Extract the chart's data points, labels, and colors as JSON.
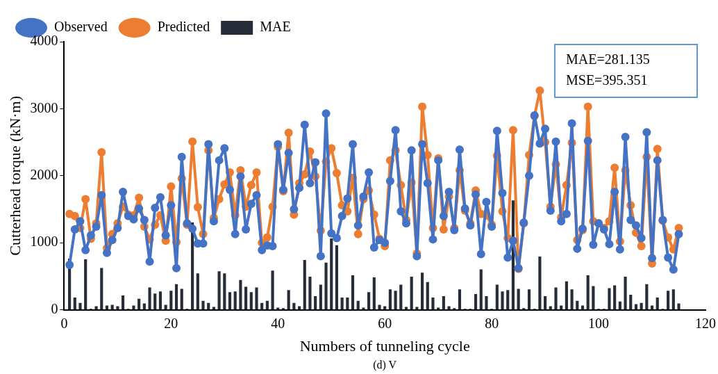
{
  "chart_data": {
    "type": "line",
    "xlabel": "Numbers of tunneling cycle",
    "ylabel": "Cutterhead torque (kN·m)",
    "annotations": [
      "MAE=281.135",
      "MSE=395.351",
      "(d) V"
    ],
    "x": [
      1,
      2,
      3,
      4,
      5,
      6,
      7,
      8,
      9,
      10,
      11,
      12,
      13,
      14,
      15,
      16,
      17,
      18,
      19,
      20,
      21,
      22,
      23,
      24,
      25,
      26,
      27,
      28,
      29,
      30,
      31,
      32,
      33,
      34,
      35,
      36,
      37,
      38,
      39,
      40,
      41,
      42,
      43,
      44,
      45,
      46,
      47,
      48,
      49,
      50,
      51,
      52,
      53,
      54,
      55,
      56,
      57,
      58,
      59,
      60,
      61,
      62,
      63,
      64,
      65,
      66,
      67,
      68,
      69,
      70,
      71,
      72,
      73,
      74,
      75,
      76,
      77,
      78,
      79,
      80,
      81,
      82,
      83,
      84,
      85,
      86,
      87,
      88,
      89,
      90,
      91,
      92,
      93,
      94,
      95,
      96,
      97,
      98,
      99,
      100,
      101,
      102,
      103,
      104,
      105,
      106,
      107,
      108,
      109,
      110,
      111,
      112,
      113,
      114,
      115
    ],
    "xlim": [
      0,
      120
    ],
    "xticks": [
      0,
      20,
      40,
      60,
      80,
      100,
      120
    ],
    "ylim": [
      0,
      4000
    ],
    "yticks": [
      0,
      1000,
      2000,
      3000,
      4000
    ],
    "grid": false,
    "legend": "top left",
    "marker": "circle",
    "line_style": "solid",
    "series": [
      {
        "name": "MAE",
        "type": "bar",
        "color": "#262c38",
        "values": [
          760,
          180,
          100,
          750,
          10,
          50,
          620,
          60,
          70,
          50,
          210,
          10,
          60,
          160,
          90,
          330,
          240,
          270,
          70,
          280,
          380,
          310,
          10,
          1300,
          540,
          130,
          100,
          40,
          570,
          540,
          260,
          270,
          440,
          340,
          260,
          330,
          100,
          130,
          580,
          30,
          20,
          290,
          100,
          50,
          740,
          490,
          200,
          370,
          700,
          1060,
          960,
          180,
          180,
          510,
          130,
          30,
          260,
          480,
          70,
          50,
          300,
          280,
          370,
          40,
          490,
          40,
          550,
          410,
          180,
          30,
          200,
          50,
          20,
          300,
          10,
          10,
          230,
          600,
          200,
          10,
          370,
          270,
          290,
          1630,
          310,
          20,
          300,
          10,
          790,
          200,
          50,
          330,
          60,
          420,
          300,
          130,
          60,
          510,
          350,
          10,
          10,
          320,
          360,
          120,
          490,
          220,
          80,
          100,
          380,
          60,
          180,
          10,
          280,
          300,
          90
        ]
      },
      {
        "name": "Observed",
        "color": "#4472c4",
        "values": [
          670,
          1200,
          1320,
          890,
          1110,
          1240,
          1710,
          850,
          1040,
          1220,
          1760,
          1400,
          1350,
          1510,
          1340,
          720,
          1520,
          1680,
          1110,
          1560,
          620,
          2280,
          1290,
          1210,
          990,
          990,
          2470,
          1320,
          2230,
          2410,
          1790,
          1130,
          1990,
          1200,
          1580,
          1710,
          890,
          960,
          950,
          2470,
          1790,
          2340,
          1500,
          1820,
          2760,
          1890,
          2200,
          800,
          2930,
          1140,
          1070,
          1400,
          1660,
          2470,
          1260,
          1690,
          2050,
          930,
          1040,
          1000,
          1920,
          2680,
          1470,
          1290,
          2380,
          800,
          2470,
          1890,
          1050,
          2230,
          1400,
          1760,
          1190,
          2390,
          1510,
          1260,
          1720,
          830,
          1610,
          1240,
          2670,
          1740,
          780,
          1030,
          620,
          1300,
          2000,
          2900,
          2480,
          2700,
          1480,
          2510,
          1320,
          1430,
          2780,
          910,
          1210,
          2520,
          970,
          1290,
          1200,
          980,
          1760,
          900,
          2580,
          1340,
          1260,
          1070,
          2650,
          770,
          2230,
          1340,
          780,
          600,
          1130
        ]
      },
      {
        "name": "Predicted",
        "color": "#ed7d31",
        "values": [
          1430,
          1400,
          1220,
          1650,
          1060,
          1290,
          2350,
          920,
          1130,
          1290,
          1540,
          1420,
          1410,
          1670,
          1240,
          1050,
          1270,
          1410,
          1030,
          1840,
          1010,
          1960,
          1270,
          2510,
          1530,
          1130,
          2380,
          1370,
          1650,
          1870,
          2050,
          1410,
          2080,
          1540,
          1860,
          2050,
          1000,
          1080,
          1540,
          2430,
          1770,
          2640,
          1420,
          1890,
          2020,
          2360,
          1990,
          1180,
          2210,
          2410,
          2040,
          1560,
          1470,
          1970,
          1130,
          1650,
          1780,
          1420,
          1060,
          950,
          2230,
          2380,
          1860,
          1340,
          1900,
          840,
          3030,
          2310,
          1220,
          2260,
          1200,
          1690,
          1220,
          2080,
          1480,
          1290,
          1780,
          1430,
          1410,
          1270,
          2300,
          1470,
          1070,
          2680,
          610,
          1290,
          2310,
          2890,
          3270,
          2500,
          1540,
          2170,
          1380,
          1860,
          2490,
          1040,
          1190,
          3030,
          1320,
          1290,
          1220,
          1320,
          2120,
          1020,
          2080,
          1560,
          1150,
          950,
          2280,
          690,
          2400,
          1330,
          1080,
          900,
          1220
        ]
      }
    ]
  }
}
